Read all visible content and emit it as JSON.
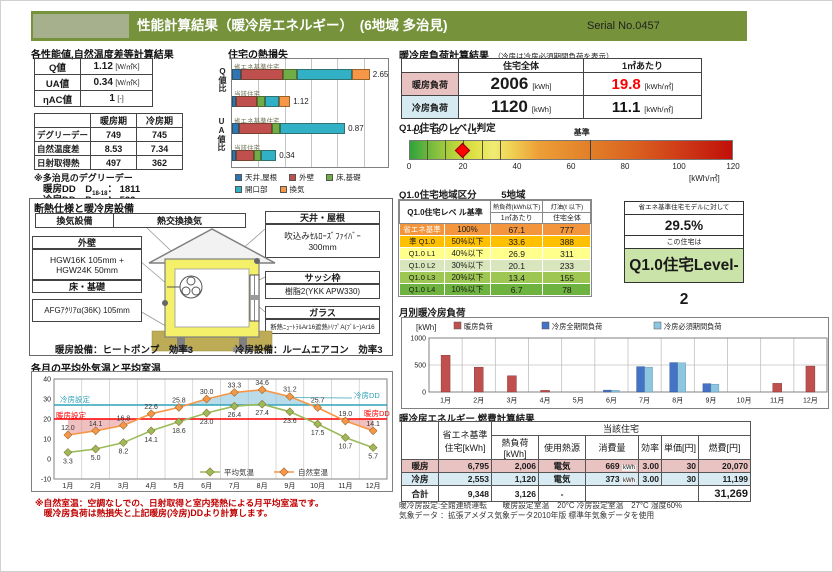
{
  "header": {
    "title": "性能計算結果（暖冷房エネルギー）　(6地域 多治見)",
    "serial": "Serial No.0457"
  },
  "colors": {
    "header_green": "#76933C",
    "heating_pink": "#E8C2C0",
    "cooling_blue": "#D6EAF2",
    "alert_red": "#FF0000",
    "result_green": "#C9E3A8"
  },
  "perf_section": {
    "heading": "各性能値,自然温度差等計算結果",
    "values_table": {
      "rows": [
        {
          "label": "Q値",
          "value": "1.12",
          "unit": "[W/㎡K]"
        },
        {
          "label": "UA値",
          "value": "0.34",
          "unit": "[W/㎡K]"
        },
        {
          "label": "ηAC値",
          "value": "1",
          "unit": "[-]"
        }
      ]
    },
    "season_table": {
      "col_headers": [
        "暖房期",
        "冷房期"
      ],
      "rows": [
        {
          "label": "デグリーデー",
          "heating": "749",
          "cooling": "745"
        },
        {
          "label": "自然温度差",
          "heating": "8.53",
          "cooling": "7.34"
        },
        {
          "label": "日射取得熱",
          "heating": "497",
          "cooling": "362"
        }
      ]
    },
    "dd_note": "※多治見のデグリーデー",
    "dd_rows": [
      {
        "label": "暖房DD",
        "d": "　D",
        "sub": "18-18",
        "value": "： 1811"
      },
      {
        "label": "冷房DD",
        "d": "　D",
        "sub": "27-27",
        "value": "： 522"
      }
    ]
  },
  "insulation": {
    "heading": "断熱仕様と暖冷房設備",
    "vent_label": "換気設備",
    "vent_value": "熱交換換気",
    "ceiling": {
      "title": "天井・屋根",
      "line1": "吹込みｾﾙﾛｰｽﾞﾌｧｲﾊﾞｰ",
      "line2": "300mm"
    },
    "wall": {
      "title": "外壁",
      "line1": "HGW16K 105mm +",
      "line2": "HGW24K 50mm"
    },
    "floor": {
      "title": "床・基礎",
      "line1": "AFGｱｸﾘｱα(36K)  105mm"
    },
    "sash": {
      "title": "サッシ枠",
      "line1": "樹脂2(YKK APW330)"
    },
    "glass": {
      "title": "ガラス",
      "line1": "断熱ﾆｭｰﾄﾗﾙAr16遮熱ﾄﾘﾌﾟA(ﾌﾞﾙｰ)Ar16"
    },
    "heating_equip": "暖房設備：ヒートポンプ　効率3",
    "cooling_equip": "冷房設備：ルームエアコン　効率3"
  },
  "load_table": {
    "heading": "暖冷房負荷計算結果",
    "heading_note": "（冷房は冷房必須期間負荷を表示）",
    "col_headers": [
      "住宅全体",
      "1㎡あたり"
    ],
    "rows": [
      {
        "label": "暖房負荷",
        "color": "#E8C2C0",
        "total": "2006",
        "total_unit": "[kWh]",
        "per": "19.8",
        "per_unit": "[kWh/㎡]",
        "per_color": "#FF0000"
      },
      {
        "label": "冷房負荷",
        "color": "#D6EAF2",
        "total": "1120",
        "total_unit": "[kWh]",
        "per": "11.1",
        "per_unit": "[kWh/㎡]",
        "per_color": "#111111"
      }
    ]
  },
  "level_judge": {
    "heading": "Q1.0住宅のレベル判定",
    "labels": [
      {
        "text": "L4",
        "v": 3.4
      },
      {
        "text": "L3",
        "v": 10.1
      },
      {
        "text": "L2",
        "v": 16.8
      },
      {
        "text": "L1",
        "v": 23.5
      },
      {
        "text": "基準",
        "v": 64.0
      }
    ],
    "boundaries": [
      6.7,
      13.4,
      20.1,
      26.9,
      33.6,
      67.1
    ],
    "marker": 19.8,
    "min": 0,
    "max": 120,
    "ticks": [
      0,
      20,
      40,
      60,
      80,
      100,
      120
    ],
    "unit": "[kWh/㎡]"
  },
  "region": {
    "label": "Q1.0住宅地域区分",
    "value": "5地域"
  },
  "level_table": {
    "header_main": "Q1.0住宅レベ ル基準",
    "header_load_top": "熱負荷(kWh以下)",
    "header_load_bottom": "1㎡あたり",
    "header_oil_top": "灯油(ℓ 以下)",
    "header_oil_bottom": "住宅全体",
    "rows": [
      {
        "name": "省エネ基準",
        "pct": "100%",
        "load": "67.1",
        "oil": "777",
        "color": "#F2953C"
      },
      {
        "name": "準 Q1.0",
        "pct": "50%以下",
        "load": "33.6",
        "oil": "388",
        "color": "#FFC000"
      },
      {
        "name": "Q1.0 L1",
        "pct": "40%以下",
        "load": "26.9",
        "oil": "311",
        "color": "#FFFF8C"
      },
      {
        "name": "Q1.0 L2",
        "pct": "30%以下",
        "load": "20.1",
        "oil": "233",
        "color": "#D9E5BD"
      },
      {
        "name": "Q1.0 L3",
        "pct": "20%以下",
        "load": "13.4",
        "oil": "155",
        "color": "#9DC652"
      },
      {
        "name": "Q1.0 L4",
        "pct": "10%以下",
        "load": "6.7",
        "oil": "78",
        "color": "#6EB33F"
      }
    ]
  },
  "result_box": {
    "line1": "省エネ基準住宅モデルに対して",
    "pct": "29.5%",
    "line2": "この住宅は",
    "level": "Q1.0住宅Level- 2",
    "level_bg": "#C9E3A8"
  },
  "energy_table": {
    "heading": "暖冷房エネルギー,燃費計算結果",
    "headers": {
      "std": "省エネ基準住宅[kWh]",
      "group": "当該住宅",
      "sub": [
        "熱負荷[kWh]",
        "使用熱源",
        "消費量",
        "効率",
        "単価[円]",
        "燃費[円]"
      ]
    },
    "rows": [
      {
        "label": "暖房",
        "std": "6,795",
        "load": "2,006",
        "source": "電気",
        "consume": "669",
        "consume_unit": "kWh",
        "eff": "3.00",
        "price": "30",
        "cost": "20,070",
        "bg": "#E9C3C1"
      },
      {
        "label": "冷房",
        "std": "2,553",
        "load": "1,120",
        "source": "電気",
        "consume": "373",
        "consume_unit": "kWh",
        "eff": "3.00",
        "price": "30",
        "cost": "11,199",
        "bg": "#D8EBF3"
      },
      {
        "label": "合計",
        "std": "9,348",
        "load": "3,126",
        "source": "-",
        "consume": "",
        "consume_unit": "",
        "eff": "",
        "price": "",
        "cost": "31,269",
        "bg": "#FFFFFF"
      }
    ],
    "notes": [
      "暖冷房設定:全館連続運転　　暖房設定室温　20°C 冷房設定室温　27°C 湿度60%",
      "気象データ ：拡張アメダス気象データ2010年版 標準年気象データを使用"
    ]
  },
  "chart_data": [
    {
      "id": "heatloss",
      "type": "bar",
      "title": "住宅の熱損失",
      "axis_labels": [
        "Q値比",
        "UA値比"
      ],
      "groups": [
        {
          "axis": "Q値比",
          "max": 3.0,
          "bars": [
            {
              "label": "省エネ基準住宅",
              "total": "2.65",
              "segments": [
                0.18,
                0.8,
                0.27,
                1.05,
                0.35
              ]
            },
            {
              "label": "当該住宅",
              "total": "1.12",
              "segments": [
                0.07,
                0.42,
                0.14,
                0.28,
                0.21
              ]
            }
          ]
        },
        {
          "axis": "UA値比",
          "max": 1.2,
          "bars": [
            {
              "label": "省エネ基準住宅",
              "total": "0.87",
              "segments": [
                0.05,
                0.26,
                0.06,
                0.5,
                0
              ]
            },
            {
              "label": "当該住宅",
              "total": "0.34",
              "segments": [
                0.03,
                0.14,
                0.05,
                0.12,
                0
              ]
            }
          ]
        }
      ],
      "legend": [
        "天井,屋根",
        "外壁",
        "床,基礎",
        "開口部",
        "換気"
      ],
      "colors": [
        "#2E75B6",
        "#C0504D",
        "#70AD47",
        "#31B0C6",
        "#F79646"
      ]
    },
    {
      "id": "monthly",
      "type": "bar",
      "title": "月別暖冷房負荷",
      "unit": "[kWh]",
      "categories": [
        "1月",
        "2月",
        "3月",
        "4月",
        "5月",
        "6月",
        "7月",
        "8月",
        "9月",
        "10月",
        "11月",
        "12月"
      ],
      "series": [
        {
          "name": "暖房負荷",
          "values": [
            680,
            460,
            300,
            30,
            0,
            0,
            0,
            0,
            0,
            0,
            160,
            480
          ]
        },
        {
          "name": "冷房全期間負荷",
          "values": [
            0,
            0,
            0,
            0,
            0,
            35,
            470,
            545,
            155,
            0,
            0,
            0
          ]
        },
        {
          "name": "冷房必須期間負荷",
          "values": [
            0,
            0,
            0,
            0,
            0,
            30,
            460,
            540,
            145,
            0,
            0,
            0
          ]
        }
      ],
      "colors": [
        "#C0504D",
        "#4472C4",
        "#8DC6E0"
      ],
      "ylim": [
        0,
        1000
      ],
      "yticks": [
        0,
        500,
        1000
      ],
      "legend_position": "top"
    },
    {
      "id": "temp",
      "type": "line",
      "title": "各月の平均外気温と平均室温",
      "categories": [
        "1月",
        "2月",
        "3月",
        "4月",
        "5月",
        "6月",
        "7月",
        "8月",
        "9月",
        "10月",
        "11月",
        "12月"
      ],
      "series": [
        {
          "name": "平均気温",
          "color": "#9BBB59",
          "values": [
            3.3,
            5.0,
            8.2,
            14.1,
            18.6,
            23.0,
            26.4,
            27.4,
            23.6,
            17.5,
            10.7,
            5.7
          ]
        },
        {
          "name": "自然室温",
          "color": "#F79646",
          "values": [
            12.0,
            14.1,
            16.8,
            22.6,
            25.8,
            30.0,
            33.3,
            34.6,
            31.2,
            25.7,
            19.0,
            14.1
          ]
        }
      ],
      "hlines": [
        {
          "value": 27,
          "color": "#2FA3B8",
          "label_left": "冷房設定",
          "label_right": "冷房DD"
        },
        {
          "value": 20,
          "color": "#FF0000",
          "label_left": "暖房設定",
          "label_right": "暖房DD"
        }
      ],
      "ylim": [
        -10,
        40
      ],
      "yticks": [
        40,
        30,
        20,
        10,
        0,
        -10
      ],
      "notes": [
        "※自然室温：空調なしでの、日射取得と室内発熱による月平均室温です。",
        "　暖冷房負荷は熱損失と上記暖房(冷房)DDより計算します。"
      ]
    }
  ]
}
